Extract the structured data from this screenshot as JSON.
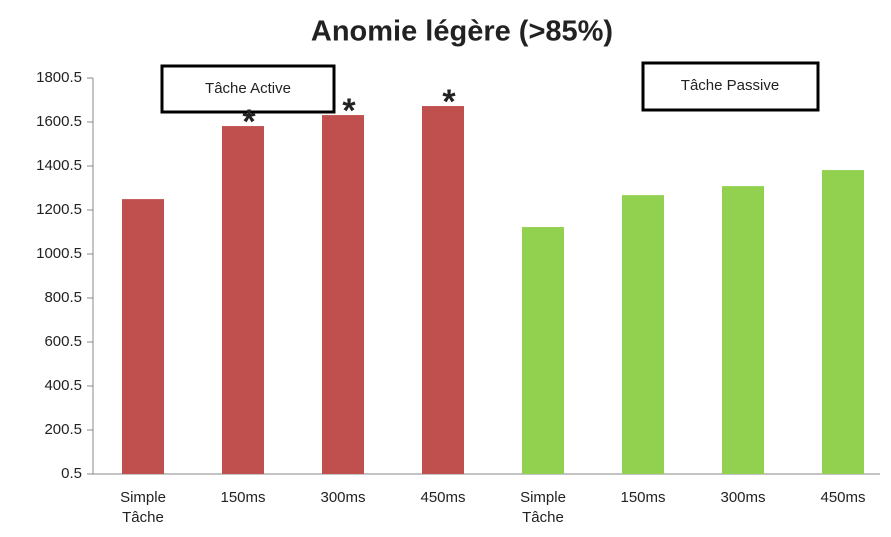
{
  "chart_data": {
    "type": "bar",
    "title": "Anomie légère (>85%)",
    "categories": [
      "Simple Tâche",
      "150ms",
      "300ms",
      "450ms",
      "Simple Tâche",
      "150ms",
      "300ms",
      "450ms"
    ],
    "values": [
      1250,
      1582,
      1632,
      1673,
      1123,
      1268,
      1309,
      1382
    ],
    "colors": [
      "#c0504d",
      "#c0504d",
      "#c0504d",
      "#c0504d",
      "#92d050",
      "#92d050",
      "#92d050",
      "#92d050"
    ],
    "ylim": [
      0.5,
      1800.5
    ],
    "yticks": [
      0.5,
      200.5,
      400.5,
      600.5,
      800.5,
      1000.5,
      1200.5,
      1400.5,
      1600.5,
      1800.5
    ],
    "annotations": [
      "Tâche Active",
      "Tâche Passive"
    ],
    "markers": [
      "*",
      "*",
      "*"
    ]
  }
}
